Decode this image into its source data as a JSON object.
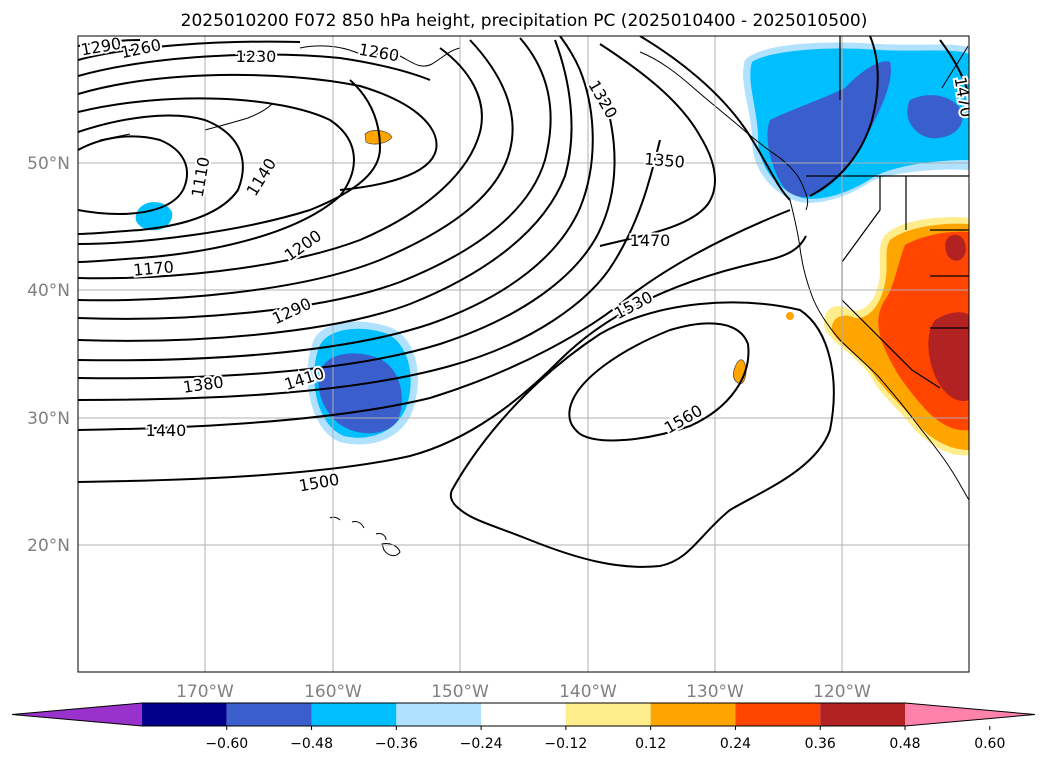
{
  "title": "2025010200 F072 850 hPa height, precipitation PC (2025010400 - 2025010500)",
  "map": {
    "lon_range": [
      -180,
      -110
    ],
    "lat_range": [
      10,
      60
    ],
    "lat_ticks": [
      {
        "value": 50,
        "label": "50°N"
      },
      {
        "value": 40,
        "label": "40°N"
      },
      {
        "value": 30,
        "label": "30°N"
      },
      {
        "value": 20,
        "label": "20°N"
      }
    ],
    "lon_ticks": [
      {
        "value": -170,
        "label": "170°W"
      },
      {
        "value": -160,
        "label": "160°W"
      },
      {
        "value": -150,
        "label": "150°W"
      },
      {
        "value": -140,
        "label": "140°W"
      },
      {
        "value": -130,
        "label": "130°W"
      },
      {
        "value": -120,
        "label": "120°W"
      }
    ],
    "gridlines": true
  },
  "contour_labels": [
    {
      "text": "1290"
    },
    {
      "text": "1260"
    },
    {
      "text": "1230"
    },
    {
      "text": "1260"
    },
    {
      "text": "1320"
    },
    {
      "text": "1470"
    },
    {
      "text": "1110"
    },
    {
      "text": "1140"
    },
    {
      "text": "1350"
    },
    {
      "text": "1170"
    },
    {
      "text": "1200"
    },
    {
      "text": "1470"
    },
    {
      "text": "1290"
    },
    {
      "text": "1530"
    },
    {
      "text": "1380"
    },
    {
      "text": "1410"
    },
    {
      "text": "1440"
    },
    {
      "text": "1560"
    },
    {
      "text": "1500"
    }
  ],
  "colorbar": {
    "extend": "both",
    "colors": [
      "#9932cc",
      "#00008b",
      "#3a5fcd",
      "#00bfff",
      "#b0e2ff",
      "#ffffff",
      "#ffec8b",
      "#ffa500",
      "#ff4500",
      "#b22222",
      "#ff82ab"
    ],
    "labels": [
      "−0.60",
      "−0.48",
      "−0.36",
      "−0.24",
      "−0.12",
      "0.12",
      "0.24",
      "0.36",
      "0.48",
      "0.60"
    ]
  }
}
